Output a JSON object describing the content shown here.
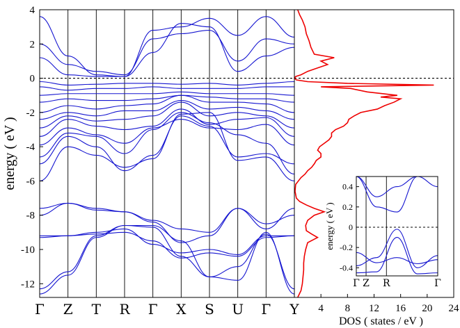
{
  "chart_data": [
    {
      "type": "line",
      "panel": "band-structure",
      "ylabel": "energy ( eV )",
      "ylim": [
        -12.8,
        4
      ],
      "yticks": [
        "-12",
        "-10",
        "-8",
        "-6",
        "-4",
        "-2",
        "0",
        "2",
        "4"
      ],
      "kpoints": [
        "Γ",
        "Z",
        "T",
        "R",
        "Γ",
        "X",
        "S",
        "U",
        "Γ",
        "Y"
      ],
      "fermi_level": 0,
      "line_color": "#1515d0",
      "bands": [
        {
          "values": [
            -12.6,
            -11.5,
            -9.3,
            -8.6,
            -8.6,
            -9.5,
            -11.6,
            -11.8,
            -9.0,
            -12.6
          ]
        },
        {
          "values": [
            -12.3,
            -11.3,
            -9.2,
            -8.6,
            -8.7,
            -10.4,
            -11.6,
            -11.0,
            -9.1,
            -12.3
          ]
        },
        {
          "values": [
            -9.3,
            -9.2,
            -9.1,
            -9.0,
            -9.5,
            -10.5,
            -10.2,
            -10.4,
            -9.3,
            -9.2
          ]
        },
        {
          "values": [
            -9.2,
            -9.2,
            -9.0,
            -8.8,
            -9.7,
            -10.2,
            -10.0,
            -10.3,
            -9.2,
            -9.2
          ]
        },
        {
          "values": [
            -8.0,
            -7.3,
            -7.6,
            -7.8,
            -8.3,
            -8.8,
            -9.0,
            -7.6,
            -8.5,
            -8.0
          ]
        },
        {
          "values": [
            -7.6,
            -7.3,
            -7.7,
            -7.8,
            -8.4,
            -9.6,
            -9.2,
            -7.6,
            -8.8,
            -7.6
          ]
        },
        {
          "values": [
            -6.0,
            -4.0,
            -4.5,
            -5.2,
            -4.7,
            -2.1,
            -2.0,
            -4.8,
            -4.6,
            -6.0
          ]
        },
        {
          "values": [
            -5.0,
            -3.4,
            -4.0,
            -5.4,
            -4.5,
            -2.2,
            -2.8,
            -4.6,
            -4.4,
            -5.0
          ]
        },
        {
          "values": [
            -4.6,
            -3.2,
            -3.4,
            -4.4,
            -3.0,
            -2.0,
            -2.6,
            -3.3,
            -3.8,
            -5.6
          ]
        },
        {
          "values": [
            -3.9,
            -2.9,
            -3.3,
            -3.8,
            -2.9,
            -2.4,
            -2.9,
            -3.0,
            -2.7,
            -3.9
          ]
        },
        {
          "values": [
            -3.4,
            -2.4,
            -2.8,
            -3.0,
            -2.8,
            -1.8,
            -2.7,
            -2.4,
            -2.3,
            -3.4
          ]
        },
        {
          "values": [
            -2.9,
            -2.2,
            -2.5,
            -2.4,
            -2.2,
            -1.4,
            -2.2,
            -2.0,
            -2.2,
            -2.9
          ]
        },
        {
          "values": [
            -2.4,
            -2.0,
            -2.2,
            -1.9,
            -1.9,
            -1.3,
            -1.8,
            -1.7,
            -1.9,
            -2.4
          ]
        },
        {
          "values": [
            -2.0,
            -1.6,
            -1.8,
            -1.6,
            -1.5,
            -1.0,
            -1.4,
            -1.4,
            -1.5,
            -2.0
          ]
        },
        {
          "values": [
            -1.4,
            -1.2,
            -1.3,
            -1.3,
            -1.2,
            -1.0,
            -1.1,
            -1.2,
            -1.2,
            -1.4
          ]
        },
        {
          "values": [
            -1.0,
            -0.9,
            -0.9,
            -0.9,
            -0.9,
            -0.8,
            -0.9,
            -0.9,
            -0.9,
            -1.0
          ]
        },
        {
          "values": [
            -0.5,
            -0.7,
            -0.6,
            -0.6,
            -0.5,
            -0.6,
            -0.6,
            -0.6,
            -0.5,
            -0.5
          ]
        },
        {
          "values": [
            -0.2,
            -0.4,
            -0.35,
            -0.3,
            -0.3,
            -0.35,
            -0.3,
            -0.4,
            -0.3,
            -0.2
          ]
        },
        {
          "values": [
            1.2,
            0.2,
            0.1,
            0.1,
            1.5,
            3.2,
            3.0,
            0.4,
            1.3,
            1.8
          ]
        },
        {
          "values": [
            2.0,
            0.8,
            0.4,
            0.2,
            2.3,
            2.6,
            2.8,
            1.0,
            2.3,
            2.0
          ]
        },
        {
          "values": [
            3.6,
            1.3,
            0.2,
            0.1,
            2.8,
            3.0,
            3.5,
            2.5,
            3.6,
            2.4
          ]
        }
      ]
    },
    {
      "type": "line",
      "panel": "density-of-states",
      "xlabel": "DOS ( states / eV )",
      "xlim": [
        0,
        24
      ],
      "xticks": [
        "4",
        "8",
        "12",
        "16",
        "20",
        "24"
      ],
      "ylim": [
        -12.8,
        4
      ],
      "line_color": "#ee0000",
      "energy": [
        -12.8,
        -12.4,
        -12.0,
        -11.6,
        -11.2,
        -10.8,
        -10.4,
        -10.0,
        -9.6,
        -9.3,
        -9.1,
        -8.9,
        -8.6,
        -8.3,
        -8.0,
        -7.8,
        -7.6,
        -7.4,
        -7.2,
        -7.0,
        -6.6,
        -6.2,
        -6.0,
        -5.8,
        -5.6,
        -5.4,
        -5.2,
        -5.0,
        -4.8,
        -4.6,
        -4.4,
        -4.2,
        -4.0,
        -3.8,
        -3.6,
        -3.4,
        -3.2,
        -3.0,
        -2.8,
        -2.6,
        -2.4,
        -2.2,
        -2.0,
        -1.8,
        -1.6,
        -1.4,
        -1.2,
        -1.1,
        -1.0,
        -0.8,
        -0.6,
        -0.5,
        -0.4,
        -0.3,
        -0.2,
        -0.1,
        0.0,
        0.1,
        0.2,
        0.4,
        0.6,
        0.8,
        1.0,
        1.2,
        1.4,
        1.8,
        2.2,
        2.6,
        3.0,
        3.4,
        3.7,
        4.0
      ],
      "dos": [
        0.5,
        1.0,
        1.2,
        1.3,
        1.4,
        1.4,
        1.5,
        1.7,
        2.0,
        3.5,
        2.6,
        1.8,
        1.7,
        2.0,
        3.0,
        4.5,
        3.0,
        1.8,
        0.8,
        0.3,
        0.1,
        0.2,
        0.6,
        1.0,
        1.6,
        2.0,
        2.6,
        3.0,
        3.3,
        4.0,
        4.0,
        3.5,
        3.8,
        4.5,
        5.2,
        5.6,
        5.6,
        6.2,
        7.4,
        8.0,
        8.2,
        9.0,
        10.0,
        12.5,
        13.6,
        15.0,
        16.0,
        13.0,
        15.5,
        11.0,
        8.5,
        4.0,
        21.0,
        8.0,
        2.0,
        0.3,
        0.0,
        0.2,
        1.0,
        2.0,
        3.5,
        5.0,
        4.0,
        6.0,
        3.0,
        2.5,
        2.2,
        1.8,
        1.6,
        1.2,
        0.8,
        0.5
      ]
    },
    {
      "type": "line",
      "panel": "inset-zoom",
      "ylabel": "energy ( eV )",
      "ylim": [
        -0.48,
        0.5
      ],
      "yticks": [
        "-0.4",
        "-0.2",
        "0",
        "0.2",
        "0.4"
      ],
      "kpoints": [
        "Γ",
        "Z",
        "R",
        "Γ"
      ],
      "line_color": "#1515d0",
      "bands": [
        {
          "values": [
            -0.25,
            -0.35,
            -0.3,
            -0.36,
            -0.32
          ]
        },
        {
          "values": [
            -0.38,
            -0.3,
            -0.02,
            -0.4,
            -0.28
          ]
        },
        {
          "values": [
            -0.45,
            -0.44,
            -0.1,
            -0.46,
            -0.45
          ]
        },
        {
          "values": [
            0.5,
            0.2,
            0.15,
            0.52,
            0.5
          ]
        },
        {
          "values": [
            0.5,
            0.3,
            0.4,
            0.55,
            0.4
          ]
        }
      ]
    }
  ]
}
